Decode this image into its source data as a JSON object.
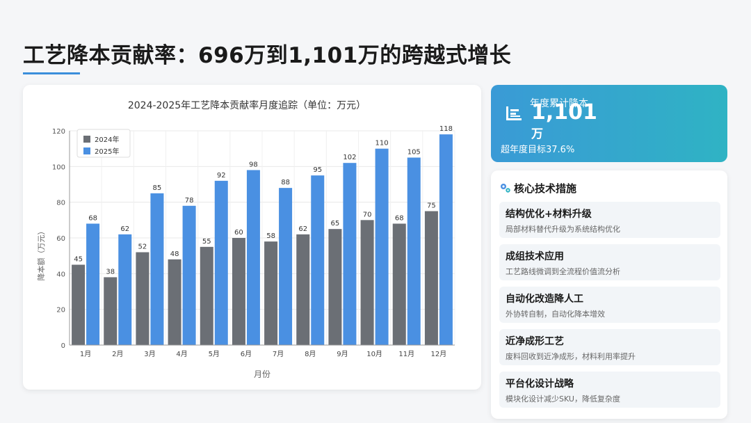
{
  "page": {
    "title": "工艺降本贡献率：696万到1,101万的跨越式增长"
  },
  "stat": {
    "label": "年度累计降本",
    "value": "1,101",
    "unit": "万",
    "sub": "超年度目标37.6%",
    "icon": "bar-chart-icon"
  },
  "tech": {
    "title": "核心技术措施",
    "icon": "gears-icon",
    "items": [
      {
        "name": "结构优化+材料升级",
        "desc": "局部材料替代升级为系统结构优化"
      },
      {
        "name": "成组技术应用",
        "desc": "工艺路线微调到全流程价值流分析"
      },
      {
        "name": "自动化改造降人工",
        "desc": "外协转自制，自动化降本增效"
      },
      {
        "name": "近净成形工艺",
        "desc": "废料回收到近净成形，材料利用率提升"
      },
      {
        "name": "平台化设计战略",
        "desc": "模块化设计减少SKU，降低复杂度"
      }
    ]
  },
  "chart_data": {
    "type": "bar",
    "title": "2024-2025年工艺降本贡献率月度追踪（单位：万元）",
    "xlabel": "月份",
    "ylabel": "降本额（万元）",
    "categories": [
      "1月",
      "2月",
      "3月",
      "4月",
      "5月",
      "6月",
      "7月",
      "8月",
      "9月",
      "10月",
      "11月",
      "12月"
    ],
    "series": [
      {
        "name": "2024年",
        "color": "#6b6f75",
        "values": [
          45,
          38,
          52,
          48,
          55,
          60,
          58,
          62,
          65,
          70,
          68,
          75
        ]
      },
      {
        "name": "2025年",
        "color": "#4a90e2",
        "values": [
          68,
          62,
          85,
          78,
          92,
          98,
          88,
          95,
          102,
          110,
          105,
          118
        ]
      }
    ],
    "ylim": [
      0,
      120
    ],
    "yticks": [
      0,
      20,
      40,
      60,
      80,
      100,
      120
    ],
    "grid": true,
    "legend": "top-left"
  }
}
